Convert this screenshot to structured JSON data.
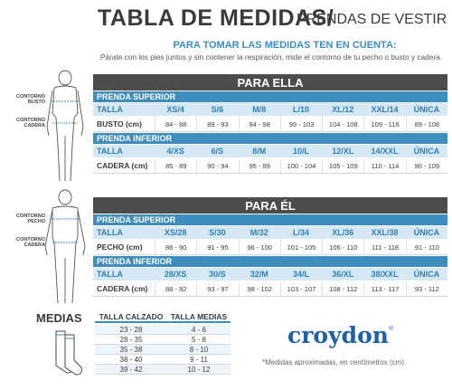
{
  "header": {
    "title": "TABLA DE MEDIDAS/",
    "title_suffix": "PRENDAS DE VESTIR",
    "subtitle": "PARA TOMAR LAS MEDIDAS TEN EN CUENTA:",
    "instruction": "Párate con los pies juntos y sin contener la respiración, mide el contorno de tu pecho o busto y cadera."
  },
  "sections": [
    {
      "title": "PARA ELLA",
      "figure_labels": [
        "CONTORNO BUSTO",
        "CONTORNO CADERA"
      ],
      "groups": [
        {
          "title": "PRENDA SUPERIOR",
          "size_label": "TALLA",
          "sizes": [
            "XS/4",
            "S/6",
            "M/8",
            "L/10",
            "XL/12",
            "XXL/14",
            "ÚNICA"
          ],
          "measure_label": "BUSTO (cm)",
          "measures": [
            "84 - 88",
            "89 - 93",
            "94 - 98",
            "99 - 103",
            "104 - 108",
            "109 - 116",
            "89 - 108"
          ]
        },
        {
          "title": "PRENDA INFERIOR",
          "size_label": "TALLA",
          "sizes": [
            "4/XS",
            "6/S",
            "8/M",
            "10/L",
            "12/XL",
            "14/XXL",
            "ÚNICA"
          ],
          "measure_label": "CADERA (cm)",
          "measures": [
            "85 - 89",
            "90 - 94",
            "95 - 99",
            "100 - 104",
            "105 - 109",
            "110 - 114",
            "90 - 109"
          ]
        }
      ]
    },
    {
      "title": "PARA ÉL",
      "figure_labels": [
        "CONTORNO PECHO",
        "CONTORNO CADERA"
      ],
      "groups": [
        {
          "title": "PRENDA SUPERIOR",
          "size_label": "TALLA",
          "sizes": [
            "XS/28",
            "S/30",
            "M/32",
            "L/34",
            "XL/36",
            "XXL/38",
            "ÚNICA"
          ],
          "measure_label": "PECHO (cm)",
          "measures": [
            "86 - 90",
            "91 - 95",
            "96 - 100",
            "101 - 105",
            "106 - 110",
            "111 - 118",
            "91 - 110"
          ]
        },
        {
          "title": "PRENDA INFERIOR",
          "size_label": "TALLA",
          "sizes": [
            "28/XS",
            "30/S",
            "32/M",
            "34/L",
            "36/XL",
            "38/XXL",
            "ÚNICA"
          ],
          "measure_label": "CADERA (cm)",
          "measures": [
            "88 - 92",
            "93 - 97",
            "98 - 102",
            "103 - 107",
            "108 - 112",
            "113 - 117",
            "93 - 112"
          ]
        }
      ]
    }
  ],
  "socks": {
    "title": "MEDIAS",
    "columns": [
      "TALLA CALZADO",
      "TALLA MEDIAS"
    ],
    "rows": [
      [
        "23 - 28",
        "4 - 6"
      ],
      [
        "28 - 35",
        "5 - 8"
      ],
      [
        "35 - 38",
        "8 - 10"
      ],
      [
        "38 - 40",
        "9 - 11"
      ],
      [
        "39 - 42",
        "10 - 12"
      ]
    ]
  },
  "brand": {
    "name": "croydon",
    "mark": "®"
  },
  "note": "*Medidas aproximadas, en centímetros (cm)."
}
